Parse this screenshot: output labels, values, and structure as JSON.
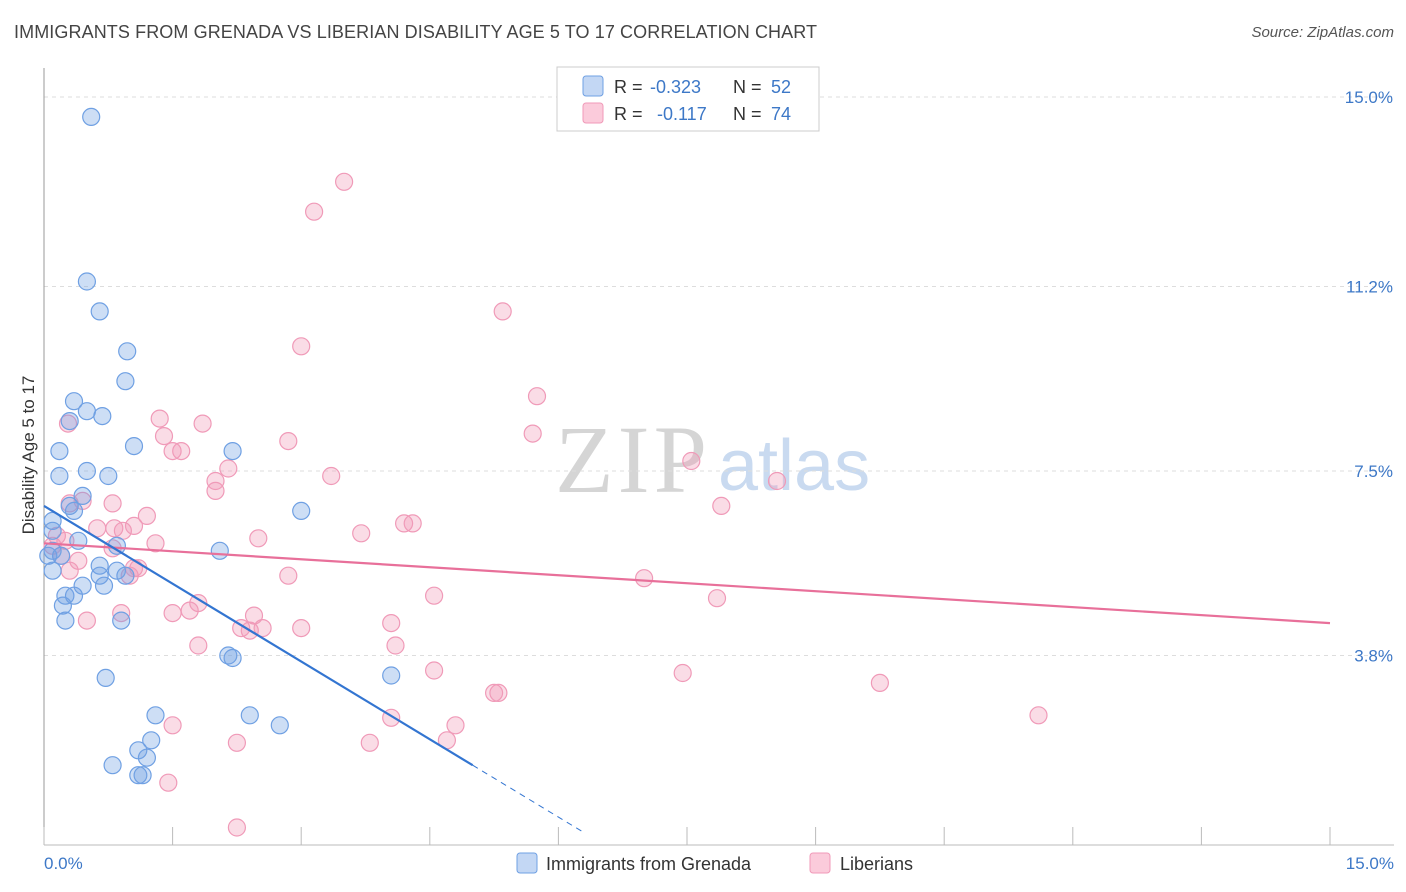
{
  "title": "IMMIGRANTS FROM GRENADA VS LIBERIAN DISABILITY AGE 5 TO 17 CORRELATION CHART",
  "source": "Source: ZipAtlas.com",
  "watermark": {
    "zip": "ZIP",
    "atlas": "atlas"
  },
  "legend": {
    "r_label": "R =",
    "n_label": "N =",
    "rows": [
      {
        "r": "-0.323",
        "n": "52"
      },
      {
        "r": "-0.117",
        "n": "74"
      }
    ]
  },
  "chart_data": {
    "type": "scatter",
    "title": "IMMIGRANTS FROM GRENADA VS LIBERIAN DISABILITY AGE 5 TO 17 CORRELATION CHART",
    "xlabel": "",
    "ylabel": "Disability Age 5 to 17",
    "xlim": [
      0,
      15
    ],
    "ylim": [
      0,
      15.4
    ],
    "x_tick_labels": [
      "0.0%",
      "15.0%"
    ],
    "y_ticks": [
      3.8,
      7.5,
      11.2,
      15.0
    ],
    "y_tick_labels": [
      "3.8%",
      "7.5%",
      "11.2%",
      "15.0%"
    ],
    "grid": true,
    "legend_position": "bottom",
    "colors": {
      "grenada": "#6fa0e3",
      "liberians": "#f09ab8",
      "grenada_line": "#3375d1",
      "liberians_line": "#e8709a"
    },
    "series": [
      {
        "name": "Immigrants from Grenada",
        "r": -0.323,
        "n": 52,
        "trend": {
          "x0": 0.0,
          "y0": 6.8,
          "x1": 5.0,
          "y1": 1.6,
          "dash_to_x": 6.3
        },
        "points": [
          [
            0.55,
            14.6
          ],
          [
            0.5,
            11.3
          ],
          [
            0.65,
            10.7
          ],
          [
            0.97,
            9.9
          ],
          [
            0.95,
            9.3
          ],
          [
            0.35,
            8.9
          ],
          [
            0.5,
            8.7
          ],
          [
            0.68,
            8.6
          ],
          [
            0.3,
            8.5
          ],
          [
            1.05,
            8.0
          ],
          [
            2.2,
            7.9
          ],
          [
            0.18,
            7.9
          ],
          [
            0.5,
            7.5
          ],
          [
            0.18,
            7.4
          ],
          [
            0.75,
            7.4
          ],
          [
            0.45,
            7.0
          ],
          [
            0.3,
            6.8
          ],
          [
            0.35,
            6.7
          ],
          [
            3.0,
            6.7
          ],
          [
            0.1,
            6.5
          ],
          [
            0.1,
            6.3
          ],
          [
            0.4,
            6.1
          ],
          [
            0.85,
            6.0
          ],
          [
            2.05,
            5.9
          ],
          [
            0.1,
            5.9
          ],
          [
            0.2,
            5.8
          ],
          [
            0.05,
            5.8
          ],
          [
            0.65,
            5.6
          ],
          [
            0.85,
            5.5
          ],
          [
            0.1,
            5.5
          ],
          [
            0.65,
            5.4
          ],
          [
            0.95,
            5.4
          ],
          [
            0.7,
            5.2
          ],
          [
            0.45,
            5.2
          ],
          [
            0.35,
            5.0
          ],
          [
            0.25,
            5.0
          ],
          [
            0.22,
            4.8
          ],
          [
            0.25,
            4.5
          ],
          [
            0.9,
            4.5
          ],
          [
            2.15,
            3.8
          ],
          [
            2.2,
            3.75
          ],
          [
            4.05,
            3.4
          ],
          [
            0.72,
            3.35
          ],
          [
            1.3,
            2.6
          ],
          [
            2.4,
            2.6
          ],
          [
            2.75,
            2.4
          ],
          [
            1.25,
            2.1
          ],
          [
            1.1,
            1.9
          ],
          [
            1.2,
            1.75
          ],
          [
            0.8,
            1.6
          ],
          [
            1.1,
            1.4
          ],
          [
            1.15,
            1.4
          ]
        ]
      },
      {
        "name": "Liberians",
        "r": -0.117,
        "n": 74,
        "trend": {
          "x0": 0.0,
          "y0": 6.05,
          "x1": 15.0,
          "y1": 4.45
        },
        "points": [
          [
            3.5,
            13.3
          ],
          [
            3.15,
            12.7
          ],
          [
            5.35,
            10.7
          ],
          [
            3.0,
            10.0
          ],
          [
            5.75,
            9.0
          ],
          [
            1.35,
            8.55
          ],
          [
            1.85,
            8.45
          ],
          [
            5.7,
            8.25
          ],
          [
            1.4,
            8.2
          ],
          [
            2.85,
            8.1
          ],
          [
            1.5,
            7.9
          ],
          [
            1.6,
            7.9
          ],
          [
            7.55,
            7.7
          ],
          [
            2.15,
            7.55
          ],
          [
            0.28,
            8.45
          ],
          [
            3.35,
            7.4
          ],
          [
            2.0,
            7.3
          ],
          [
            8.55,
            7.3
          ],
          [
            2.0,
            7.1
          ],
          [
            0.45,
            6.9
          ],
          [
            0.8,
            6.85
          ],
          [
            7.9,
            6.8
          ],
          [
            1.2,
            6.6
          ],
          [
            4.2,
            6.45
          ],
          [
            4.3,
            6.45
          ],
          [
            0.62,
            6.35
          ],
          [
            0.82,
            6.35
          ],
          [
            0.92,
            6.3
          ],
          [
            1.05,
            6.4
          ],
          [
            0.15,
            6.2
          ],
          [
            3.7,
            6.25
          ],
          [
            2.5,
            6.15
          ],
          [
            0.25,
            6.1
          ],
          [
            0.1,
            6.0
          ],
          [
            1.3,
            6.05
          ],
          [
            0.8,
            5.95
          ],
          [
            0.2,
            5.8
          ],
          [
            0.4,
            5.7
          ],
          [
            1.05,
            5.55
          ],
          [
            1.1,
            5.55
          ],
          [
            0.3,
            5.5
          ],
          [
            1.0,
            5.4
          ],
          [
            2.85,
            5.4
          ],
          [
            7.0,
            5.35
          ],
          [
            4.55,
            5.0
          ],
          [
            7.85,
            4.95
          ],
          [
            1.8,
            4.85
          ],
          [
            0.9,
            4.65
          ],
          [
            1.5,
            4.65
          ],
          [
            1.7,
            4.7
          ],
          [
            2.45,
            4.6
          ],
          [
            0.5,
            4.5
          ],
          [
            4.05,
            4.45
          ],
          [
            2.55,
            4.35
          ],
          [
            2.3,
            4.35
          ],
          [
            3.0,
            4.35
          ],
          [
            2.4,
            4.3
          ],
          [
            1.8,
            4.0
          ],
          [
            4.1,
            4.0
          ],
          [
            4.55,
            3.5
          ],
          [
            7.45,
            3.45
          ],
          [
            9.75,
            3.25
          ],
          [
            5.25,
            3.05
          ],
          [
            5.3,
            3.05
          ],
          [
            11.6,
            2.6
          ],
          [
            4.05,
            2.55
          ],
          [
            1.5,
            2.4
          ],
          [
            4.8,
            2.4
          ],
          [
            4.7,
            2.1
          ],
          [
            2.25,
            2.05
          ],
          [
            3.8,
            2.05
          ],
          [
            1.45,
            1.25
          ],
          [
            2.25,
            0.35
          ],
          [
            0.3,
            6.85
          ]
        ]
      }
    ]
  }
}
